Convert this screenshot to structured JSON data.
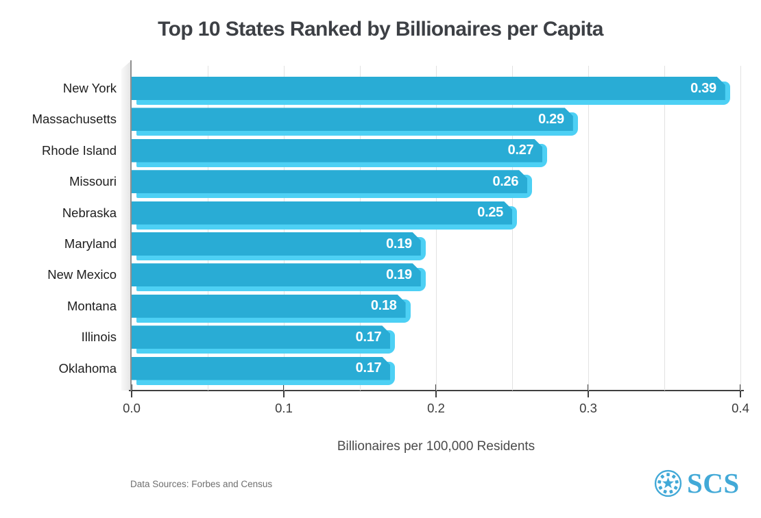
{
  "title": "Top 10 States Ranked by Billionaires per Capita",
  "chart_data": {
    "type": "bar",
    "orientation": "horizontal",
    "title": "Top 10 States Ranked by Billionaires per Capita",
    "categories": [
      "New York",
      "Massachusetts",
      "Rhode Island",
      "Missouri",
      "Nebraska",
      "Maryland",
      "New Mexico",
      "Montana",
      "Illinois",
      "Oklahoma"
    ],
    "values": [
      0.39,
      0.29,
      0.27,
      0.26,
      0.25,
      0.19,
      0.19,
      0.18,
      0.17,
      0.17
    ],
    "value_labels": [
      "0.39",
      "0.29",
      "0.27",
      "0.26",
      "0.25",
      "0.19",
      "0.19",
      "0.18",
      "0.17",
      "0.17"
    ],
    "xlabel": "Billionaires per 100,000 Residents",
    "xlim": [
      0,
      0.4
    ],
    "x_tick_values": [
      0,
      0.1,
      0.2,
      0.3,
      0.4
    ],
    "x_tick_labels": [
      "0.0",
      "0.1",
      "0.2",
      "0.3",
      "0.4"
    ],
    "grid": true,
    "grid_interval": 0.05,
    "legend": false,
    "colors": {
      "bar_face": "#29acd5",
      "bar_bevel": "#4dd0f4",
      "value_label": "#ffffff",
      "grid_line": "#e2e2e2",
      "axis_line": "#3f3f3f"
    }
  },
  "footer": {
    "source_note": "Data Sources: Forbes and Census",
    "logo_text": "SCS",
    "logo_color": "#42a9d7"
  }
}
